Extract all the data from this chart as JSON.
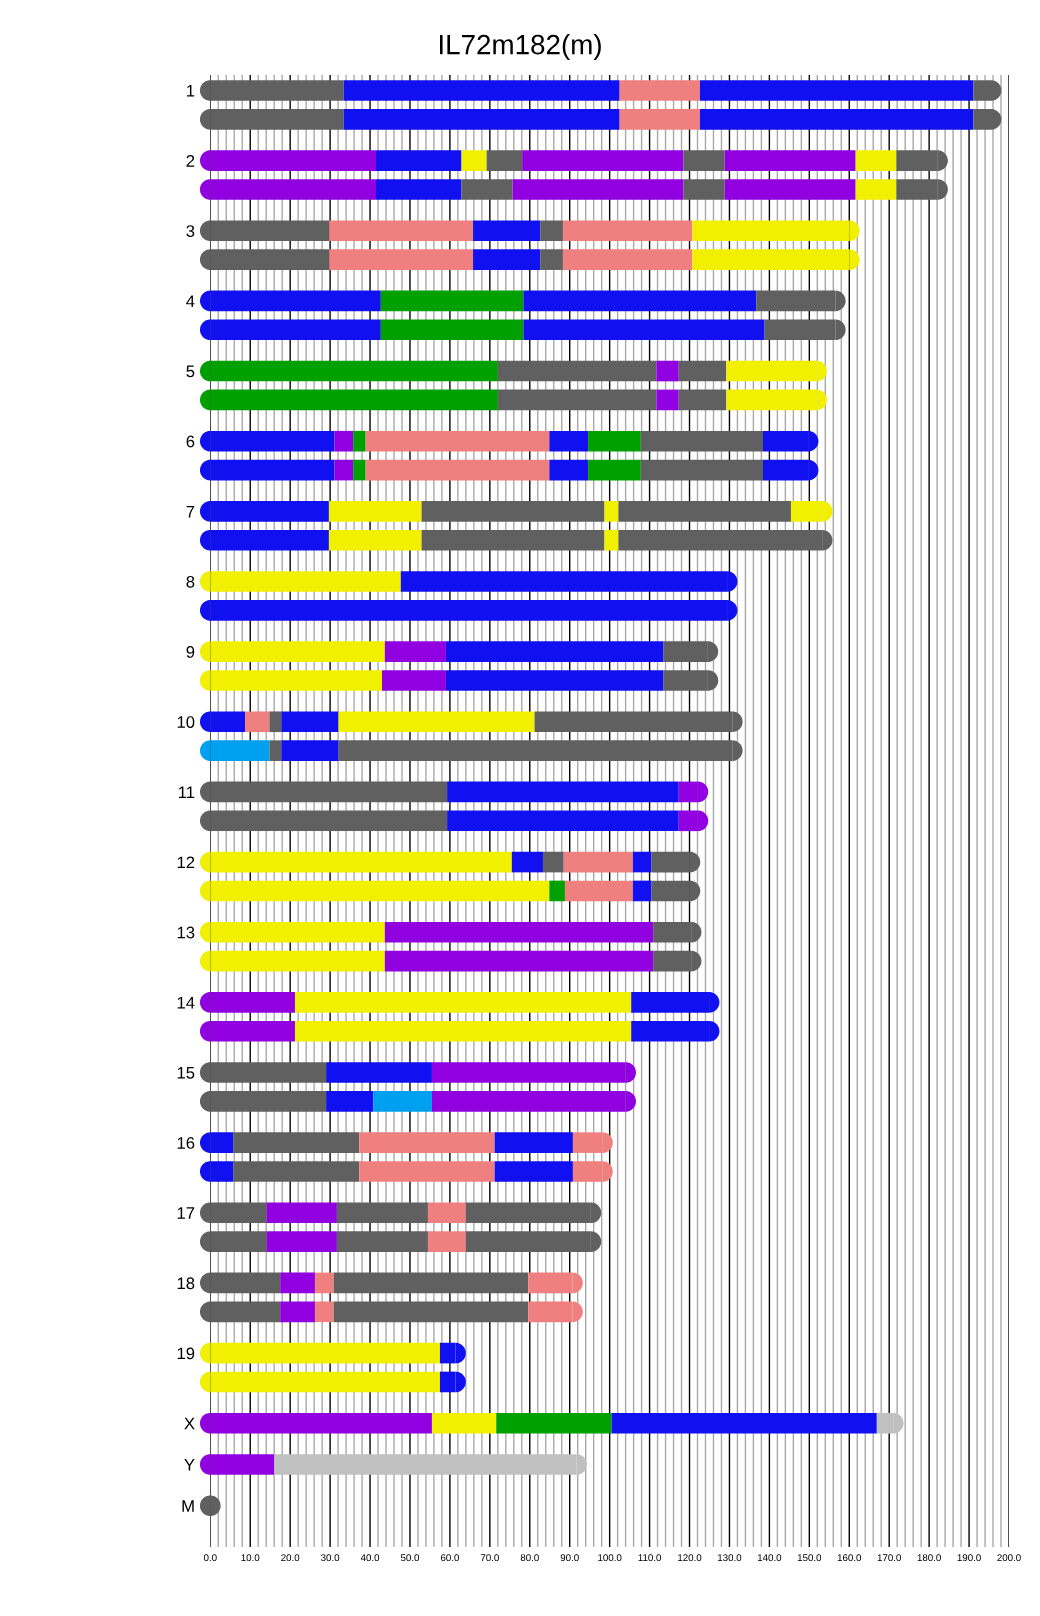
{
  "chart_data": {
    "type": "bar",
    "orientation": "horizontal",
    "stacked": true,
    "title": "IL72m182(m)",
    "categories": [
      "1",
      null,
      "2",
      null,
      "3",
      null,
      "4",
      null,
      "5",
      null,
      "6",
      null,
      "7",
      null,
      "8",
      null,
      "9",
      null,
      "10",
      null,
      "11",
      null,
      "12",
      null,
      "13",
      null,
      "14",
      null,
      "15",
      null,
      "16",
      null,
      "17",
      null,
      "18",
      null,
      "19",
      null,
      "X",
      "Y",
      "M"
    ],
    "series": [
      {
        "values": [
          33.4,
          33.4,
          41.5,
          41.5,
          29.8,
          29.8,
          42.7,
          42.7,
          72.0,
          72.0,
          31.1,
          31.1,
          29.7,
          29.7,
          47.7,
          129.4,
          43.7,
          43.0,
          8.7,
          14.8,
          59.3,
          59.3,
          75.5,
          84.9,
          43.7,
          43.7,
          21.2,
          21.2,
          29.0,
          29.0,
          5.8,
          5.8,
          14.1,
          14.1,
          17.5,
          17.5,
          57.5,
          57.5,
          55.5,
          16.0,
          0
        ],
        "colors": [
          "#606060",
          "#606060",
          "#9000e0",
          "#9000e0",
          "#606060",
          "#606060",
          "#1010f0",
          "#1010f0",
          "#00a000",
          "#00a000",
          "#1010f0",
          "#1010f0",
          "#1010f0",
          "#1010f0",
          "#f0f000",
          "#1010f0",
          "#f0f000",
          "#f0f000",
          "#1010f0",
          "#00a0f0",
          "#606060",
          "#606060",
          "#f0f000",
          "#f0f000",
          "#f0f000",
          "#f0f000",
          "#9000e0",
          "#9000e0",
          "#606060",
          "#606060",
          "#1010f0",
          "#1010f0",
          "#606060",
          "#606060",
          "#606060",
          "#606060",
          "#f0f000",
          "#f0f000",
          "#9000e0",
          "#9000e0",
          "#606060"
        ]
      },
      {
        "values": [
          69.1,
          69.1,
          21.4,
          21.4,
          36.0,
          36.0,
          35.7,
          35.7,
          39.7,
          39.7,
          4.7,
          4.7,
          23.2,
          23.2,
          81.7,
          null,
          15.3,
          16.0,
          6.1,
          3.0,
          58.0,
          58.0,
          7.8,
          3.9,
          67.2,
          67.2,
          84.2,
          84.2,
          26.5,
          11.8,
          31.5,
          31.5,
          17.6,
          17.6,
          8.7,
          8.7,
          3.9,
          3.9,
          16.1,
          75.7,
          null
        ],
        "colors": [
          "#1010f0",
          "#1010f0",
          "#1010f0",
          "#1010f0",
          "#f08080",
          "#f08080",
          "#00a000",
          "#00a000",
          "#606060",
          "#606060",
          "#9000e0",
          "#9000e0",
          "#f0f000",
          "#f0f000",
          "#1010f0",
          null,
          "#9000e0",
          "#9000e0",
          "#f08080",
          "#606060",
          "#1010f0",
          "#1010f0",
          "#1010f0",
          "#00a000",
          "#9000e0",
          "#9000e0",
          "#f0f000",
          "#f0f000",
          "#1010f0",
          "#1010f0",
          "#606060",
          "#606060",
          "#9000e0",
          "#9000e0",
          "#9000e0",
          "#9000e0",
          "#1010f0",
          "#1010f0",
          "#f0f000",
          "#c0c0c0",
          null
        ]
      },
      {
        "values": [
          20.1,
          20.1,
          6.3,
          12.8,
          16.8,
          16.8,
          58.3,
          60.4,
          5.6,
          5.6,
          3.1,
          3.1,
          45.8,
          45.8,
          null,
          null,
          54.5,
          54.5,
          3.0,
          14.3,
          4.8,
          4.8,
          5.2,
          17.0,
          9.5,
          9.5,
          19.5,
          19.5,
          48.5,
          14.7,
          33.9,
          33.9,
          22.8,
          22.8,
          4.7,
          4.7,
          null,
          null,
          28.9,
          null,
          null
        ],
        "colors": [
          "#f08080",
          "#f08080",
          "#f0f000",
          "#606060",
          "#1010f0",
          "#1010f0",
          "#1010f0",
          "#1010f0",
          "#9000e0",
          "#9000e0",
          "#00a000",
          "#00a000",
          "#606060",
          "#606060",
          null,
          null,
          "#1010f0",
          "#1010f0",
          "#606060",
          "#1010f0",
          "#9000e0",
          "#9000e0",
          "#606060",
          "#f08080",
          "#606060",
          "#606060",
          "#1010f0",
          "#1010f0",
          "#9000e0",
          "#00a0f0",
          "#f08080",
          "#f08080",
          "#606060",
          "#606060",
          "#f08080",
          "#f08080",
          null,
          null,
          "#00a000",
          null,
          null
        ]
      },
      {
        "values": [
          68.5,
          68.5,
          8.9,
          42.8,
          5.7,
          5.7,
          19.8,
          17.7,
          11.9,
          11.9,
          46.0,
          46.0,
          3.5,
          3.5,
          null,
          null,
          11.1,
          11.1,
          14.3,
          98.6,
          null,
          null,
          17.3,
          4.7,
          null,
          null,
          null,
          null,
          null,
          48.5,
          19.6,
          19.6,
          9.5,
          9.5,
          48.7,
          48.7,
          null,
          null,
          66.4,
          null,
          null
        ],
        "colors": [
          "#1010f0",
          "#1010f0",
          "#606060",
          "#9000e0",
          "#606060",
          "#606060",
          "#606060",
          "#606060",
          "#606060",
          "#606060",
          "#f08080",
          "#f08080",
          "#f0f000",
          "#f0f000",
          null,
          null,
          "#606060",
          "#606060",
          "#1010f0",
          "#606060",
          null,
          null,
          "#f08080",
          "#1010f0",
          null,
          null,
          null,
          null,
          null,
          "#9000e0",
          "#1010f0",
          "#1010f0",
          "#f08080",
          "#f08080",
          "#606060",
          "#606060",
          null,
          null,
          "#1010f0",
          null,
          null
        ]
      },
      {
        "values": [
          4.4,
          4.4,
          40.4,
          10.3,
          32.4,
          32.4,
          null,
          null,
          22.6,
          22.6,
          9.7,
          9.7,
          43.2,
          51.0,
          null,
          null,
          null,
          null,
          49.1,
          null,
          null,
          null,
          4.7,
          9.6,
          null,
          null,
          null,
          null,
          null,
          null,
          7.4,
          7.4,
          31.3,
          31.3,
          11.1,
          11.1,
          null,
          null,
          4.1,
          null,
          null
        ],
        "colors": [
          "#606060",
          "#606060",
          "#9000e0",
          "#606060",
          "#f08080",
          "#f08080",
          null,
          null,
          "#f0f000",
          "#f0f000",
          "#1010f0",
          "#1010f0",
          "#606060",
          "#606060",
          null,
          null,
          null,
          null,
          "#f0f000",
          null,
          null,
          null,
          "#1010f0",
          "#606060",
          null,
          null,
          null,
          null,
          null,
          null,
          "#f08080",
          "#f08080",
          "#606060",
          "#606060",
          "#f08080",
          "#f08080",
          null,
          null,
          "#c0c0c0",
          null,
          null
        ]
      },
      {
        "values": [
          null,
          null,
          10.3,
          32.8,
          39.3,
          39.3,
          null,
          null,
          null,
          null,
          13.2,
          13.2,
          7.8,
          null,
          null,
          null,
          null,
          null,
          49.5,
          null,
          null,
          null,
          9.6,
          null,
          null,
          null,
          null,
          null,
          null,
          null,
          null,
          null,
          null,
          null,
          null,
          null,
          null,
          null,
          null,
          null,
          null
        ],
        "colors": [
          null,
          null,
          "#606060",
          "#9000e0",
          "#f0f000",
          "#f0f000",
          null,
          null,
          null,
          null,
          "#00a000",
          "#00a000",
          "#f0f000",
          null,
          null,
          null,
          null,
          null,
          "#606060",
          null,
          null,
          null,
          "#606060",
          null,
          null,
          null,
          null,
          null,
          null,
          null,
          null,
          null,
          null,
          null,
          null,
          null,
          null,
          null,
          null,
          null,
          null
        ]
      },
      {
        "values": [
          null,
          null,
          32.8,
          10.2,
          null,
          null,
          null,
          null,
          null,
          null,
          30.6,
          30.6,
          null,
          null,
          null,
          null,
          null,
          null,
          null,
          null,
          null,
          null,
          null,
          null,
          null,
          null,
          null,
          null,
          null,
          null,
          null,
          null,
          null,
          null,
          null,
          null,
          null,
          null,
          null,
          null,
          null
        ],
        "colors": [
          null,
          null,
          "#9000e0",
          "#f0f000",
          null,
          null,
          null,
          null,
          null,
          null,
          "#606060",
          "#606060",
          null,
          null,
          null,
          null,
          null,
          null,
          null,
          null,
          null,
          null,
          null,
          null,
          null,
          null,
          null,
          null,
          null,
          null,
          null,
          null,
          null,
          null,
          null,
          null,
          null,
          null,
          null,
          null,
          null
        ]
      },
      {
        "values": [
          null,
          null,
          10.2,
          10.3,
          null,
          null,
          null,
          null,
          null,
          null,
          11.3,
          11.3,
          null,
          null,
          null,
          null,
          null,
          null,
          null,
          null,
          null,
          null,
          null,
          null,
          null,
          null,
          null,
          null,
          null,
          null,
          null,
          null,
          null,
          null,
          null,
          null,
          null,
          null,
          null,
          null,
          null
        ],
        "colors": [
          null,
          null,
          "#f0f000",
          "#606060",
          null,
          null,
          null,
          null,
          null,
          null,
          "#1010f0",
          "#1010f0",
          null,
          null,
          null,
          null,
          null,
          null,
          null,
          null,
          null,
          null,
          null,
          null,
          null,
          null,
          null,
          null,
          null,
          null,
          null,
          null,
          null,
          null,
          null,
          null,
          null,
          null,
          null,
          null,
          null
        ]
      },
      {
        "values": [
          null,
          null,
          10.3,
          null,
          null,
          null,
          null,
          null,
          null,
          null,
          null,
          null,
          null,
          null,
          null,
          null,
          null,
          null,
          null,
          null,
          null,
          null,
          null,
          null,
          null,
          null,
          null,
          null,
          null,
          null,
          null,
          null,
          null,
          null,
          null,
          null,
          null,
          null,
          null,
          null,
          null
        ],
        "colors": [
          null,
          null,
          "#606060",
          null,
          null,
          null,
          null,
          null,
          null,
          null,
          null,
          null,
          null,
          null,
          null,
          null,
          null,
          null,
          null,
          null,
          null,
          null,
          null,
          null,
          null,
          null,
          null,
          null,
          null,
          null,
          null,
          null,
          null,
          null,
          null,
          null,
          null,
          null,
          null,
          null,
          null
        ]
      }
    ],
    "xlim": [
      0,
      200
    ],
    "xticks": [
      {
        "value": 0,
        "label": "0.0"
      },
      {
        "value": 2,
        "label": null
      },
      {
        "value": 4,
        "label": null
      },
      {
        "value": 6,
        "label": null
      },
      {
        "value": 8,
        "label": null
      },
      {
        "value": 10,
        "label": "10.0"
      },
      {
        "value": 12,
        "label": null
      },
      {
        "value": 14,
        "label": null
      },
      {
        "value": 16,
        "label": null
      },
      {
        "value": 18,
        "label": null
      },
      {
        "value": 20,
        "label": "20.0"
      },
      {
        "value": 22,
        "label": null
      },
      {
        "value": 24,
        "label": null
      },
      {
        "value": 26,
        "label": null
      },
      {
        "value": 28,
        "label": null
      },
      {
        "value": 30,
        "label": "30.0"
      },
      {
        "value": 32,
        "label": null
      },
      {
        "value": 34,
        "label": null
      },
      {
        "value": 36,
        "label": null
      },
      {
        "value": 38,
        "label": null
      },
      {
        "value": 40,
        "label": "40.0"
      },
      {
        "value": 42,
        "label": null
      },
      {
        "value": 44,
        "label": null
      },
      {
        "value": 46,
        "label": null
      },
      {
        "value": 48,
        "label": null
      },
      {
        "value": 50,
        "label": "50.0"
      },
      {
        "value": 52,
        "label": null
      },
      {
        "value": 54,
        "label": null
      },
      {
        "value": 56,
        "label": null
      },
      {
        "value": 58,
        "label": null
      },
      {
        "value": 60,
        "label": "60.0"
      },
      {
        "value": 62,
        "label": null
      },
      {
        "value": 64,
        "label": null
      },
      {
        "value": 66,
        "label": null
      },
      {
        "value": 68,
        "label": null
      },
      {
        "value": 70,
        "label": "70.0"
      },
      {
        "value": 72,
        "label": null
      },
      {
        "value": 74,
        "label": null
      },
      {
        "value": 76,
        "label": null
      },
      {
        "value": 78,
        "label": null
      },
      {
        "value": 80,
        "label": "80.0"
      },
      {
        "value": 82,
        "label": null
      },
      {
        "value": 84,
        "label": null
      },
      {
        "value": 86,
        "label": null
      },
      {
        "value": 88,
        "label": null
      },
      {
        "value": 90,
        "label": "90.0"
      },
      {
        "value": 92,
        "label": null
      },
      {
        "value": 94,
        "label": null
      },
      {
        "value": 96,
        "label": null
      },
      {
        "value": 98,
        "label": null
      },
      {
        "value": 100,
        "label": "100.0"
      },
      {
        "value": 102,
        "label": null
      },
      {
        "value": 104,
        "label": null
      },
      {
        "value": 106,
        "label": null
      },
      {
        "value": 108,
        "label": null
      },
      {
        "value": 110,
        "label": "110.0"
      },
      {
        "value": 112,
        "label": null
      },
      {
        "value": 114,
        "label": null
      },
      {
        "value": 116,
        "label": null
      },
      {
        "value": 118,
        "label": null
      },
      {
        "value": 120,
        "label": "120.0"
      },
      {
        "value": 122,
        "label": null
      },
      {
        "value": 124,
        "label": null
      },
      {
        "value": 126,
        "label": null
      },
      {
        "value": 128,
        "label": null
      },
      {
        "value": 130,
        "label": "130.0"
      },
      {
        "value": 132,
        "label": null
      },
      {
        "value": 134,
        "label": null
      },
      {
        "value": 136,
        "label": null
      },
      {
        "value": 138,
        "label": null
      },
      {
        "value": 140,
        "label": "140.0"
      },
      {
        "value": 142,
        "label": null
      },
      {
        "value": 144,
        "label": null
      },
      {
        "value": 146,
        "label": null
      },
      {
        "value": 148,
        "label": null
      },
      {
        "value": 150,
        "label": "150.0"
      },
      {
        "value": 152,
        "label": null
      },
      {
        "value": 154,
        "label": null
      },
      {
        "value": 156,
        "label": null
      },
      {
        "value": 158,
        "label": null
      },
      {
        "value": 160,
        "label": "160.0"
      },
      {
        "value": 162,
        "label": null
      },
      {
        "value": 164,
        "label": null
      },
      {
        "value": 166,
        "label": null
      },
      {
        "value": 168,
        "label": null
      },
      {
        "value": 170,
        "label": "170.0"
      },
      {
        "value": 172,
        "label": null
      },
      {
        "value": 174,
        "label": null
      },
      {
        "value": 176,
        "label": null
      },
      {
        "value": 178,
        "label": null
      },
      {
        "value": 180,
        "label": "180.0"
      },
      {
        "value": 182,
        "label": null
      },
      {
        "value": 184,
        "label": null
      },
      {
        "value": 186,
        "label": null
      },
      {
        "value": 188,
        "label": null
      },
      {
        "value": 190,
        "label": "190.0"
      },
      {
        "value": 192,
        "label": null
      },
      {
        "value": 194,
        "label": null
      },
      {
        "value": 196,
        "label": null
      },
      {
        "value": 198,
        "label": null
      },
      {
        "value": 200,
        "label": "200.0"
      }
    ],
    "grid": "x"
  }
}
